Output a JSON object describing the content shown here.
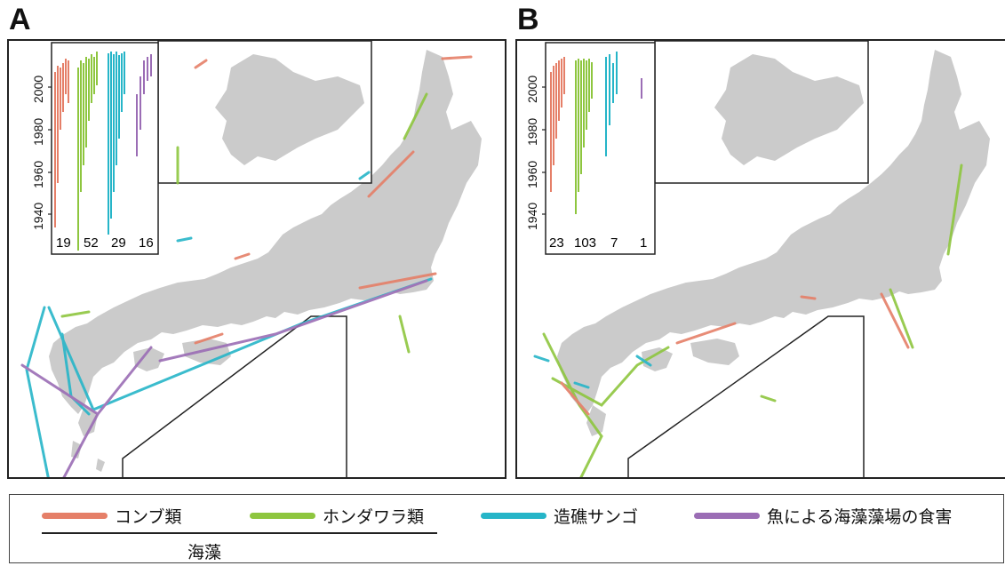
{
  "panels": [
    {
      "letter": "A",
      "counts": [
        "19",
        "52",
        "29",
        "16"
      ]
    },
    {
      "letter": "B",
      "counts": [
        "23",
        "103",
        "7",
        "1"
      ]
    }
  ],
  "inset_axis": {
    "ticks": [
      "1940",
      "1960",
      "1980",
      "2000"
    ]
  },
  "legend": {
    "items": [
      {
        "label": "コンブ類",
        "color": "#e57f68"
      },
      {
        "label": "ホンダワラ類",
        "color": "#8ec63f"
      },
      {
        "label": "造礁サンゴ",
        "color": "#26b5c8"
      },
      {
        "label": "魚による海藻藻場の食害",
        "color": "#9b6db5"
      }
    ],
    "group_label": "海藻"
  },
  "chart_data": [
    {
      "type": "other",
      "panel": "A",
      "series": [
        {
          "name": "コンブ類",
          "n": 19
        },
        {
          "name": "ホンダワラ類",
          "n": 52
        },
        {
          "name": "造礁サンゴ",
          "n": 29
        },
        {
          "name": "魚による海藻藻場の食害",
          "n": 16
        }
      ],
      "inset_ylim": [
        1930,
        2015
      ]
    },
    {
      "type": "other",
      "panel": "B",
      "series": [
        {
          "name": "コンブ類",
          "n": 23
        },
        {
          "name": "ホンダワラ類",
          "n": 103
        },
        {
          "name": "造礁サンゴ",
          "n": 7
        },
        {
          "name": "魚による海藻藻場の食害",
          "n": 1
        }
      ],
      "inset_ylim": [
        1930,
        2015
      ]
    }
  ]
}
